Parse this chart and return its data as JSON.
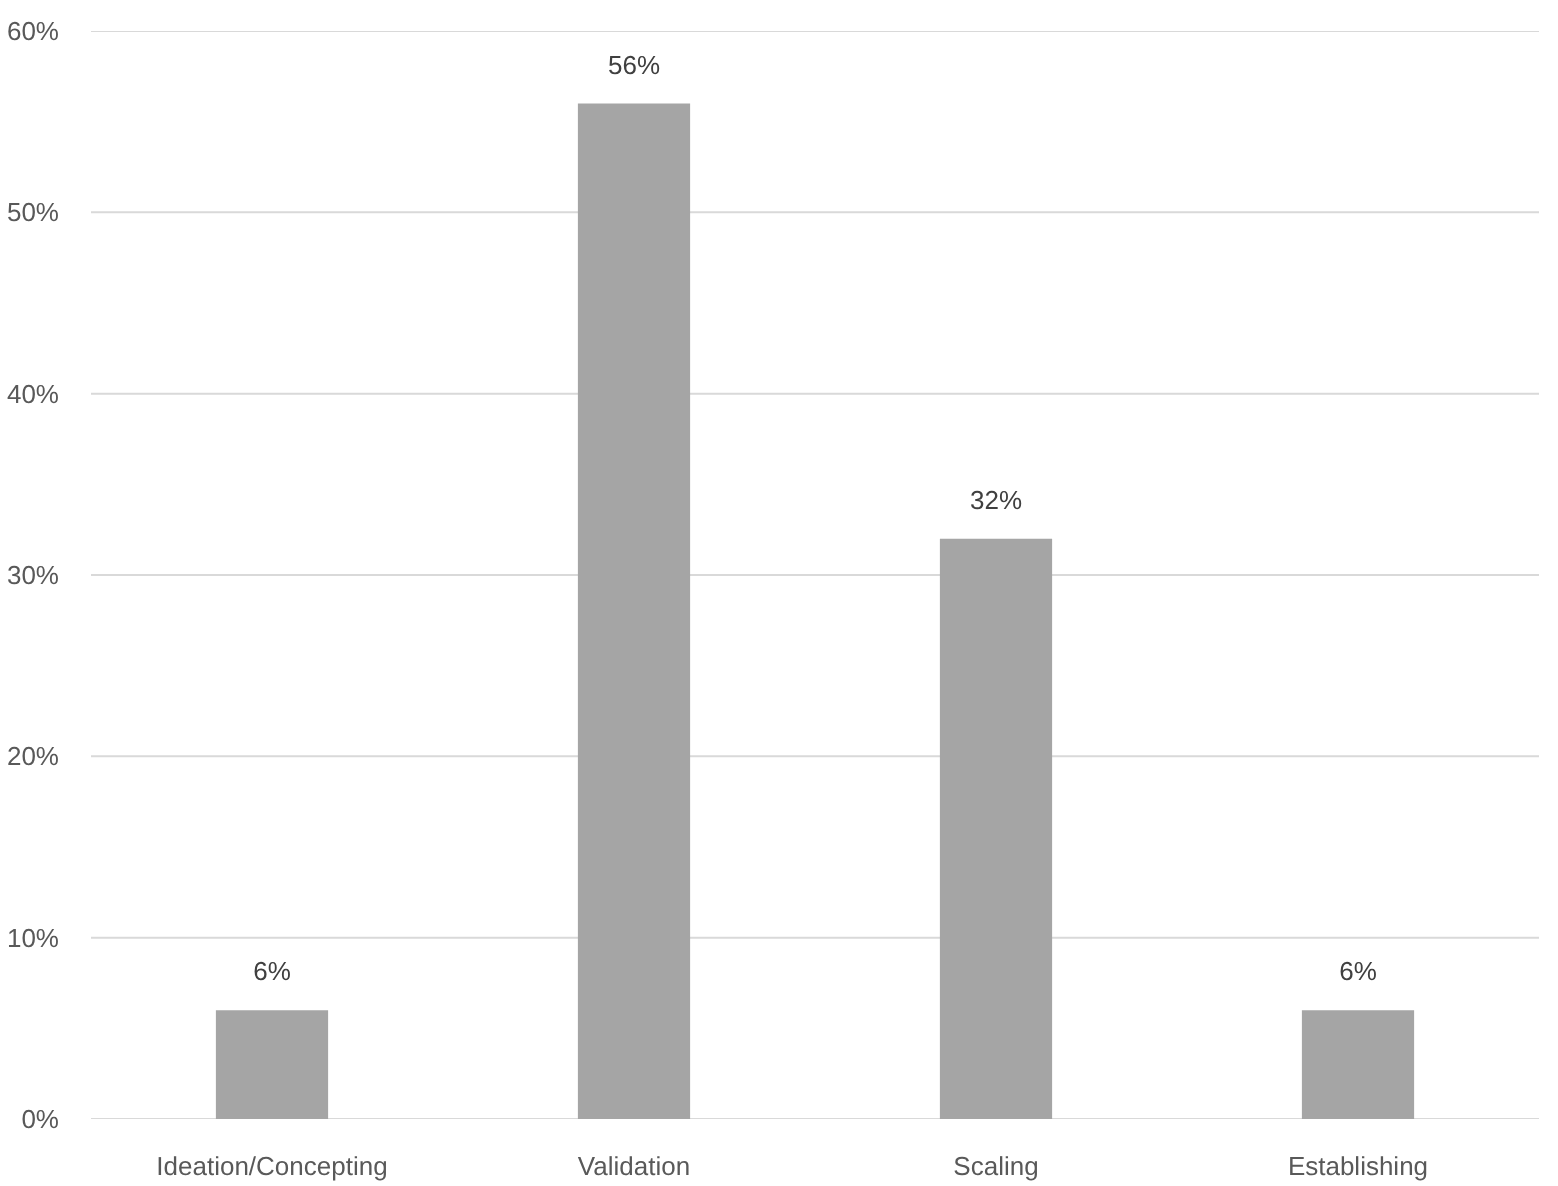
{
  "chart_data": {
    "type": "bar",
    "categories": [
      "Ideation/Concepting",
      "Validation",
      "Scaling",
      "Establishing"
    ],
    "values": [
      6,
      56,
      32,
      6
    ],
    "color": "#a5a5a5",
    "value_labels": [
      "6%",
      "56%",
      "32%",
      "6%"
    ],
    "ylim": [
      0,
      60
    ],
    "yticks": [
      {
        "value": 0,
        "label": "0%"
      },
      {
        "value": 10,
        "label": "10%"
      },
      {
        "value": 20,
        "label": "20%"
      },
      {
        "value": 30,
        "label": "30%"
      },
      {
        "value": 40,
        "label": "40%"
      },
      {
        "value": 50,
        "label": "50%"
      },
      {
        "value": 60,
        "label": "60%"
      }
    ],
    "grid": "y"
  }
}
